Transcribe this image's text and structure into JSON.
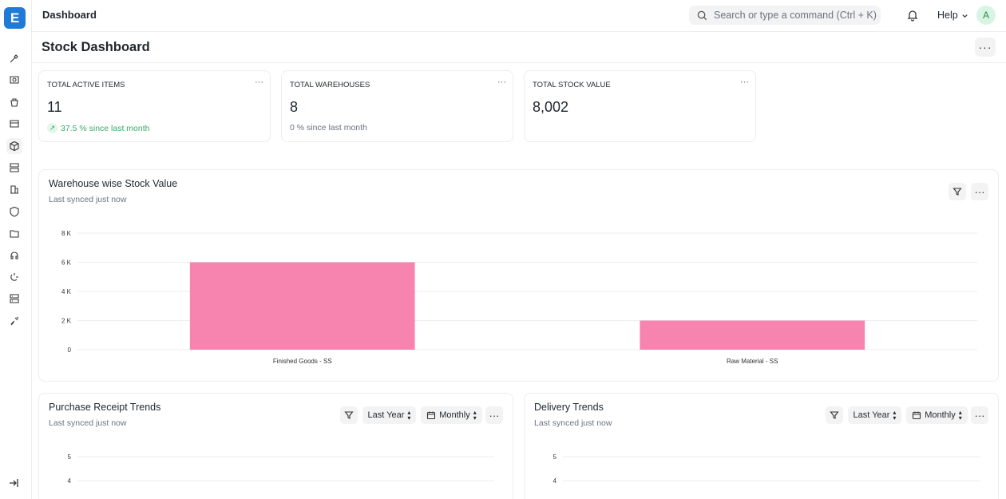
{
  "app": {
    "logo_letter": "E"
  },
  "topbar": {
    "breadcrumb": "Dashboard",
    "search_placeholder": "Search or type a command (Ctrl + K)",
    "help_label": "Help",
    "avatar_letter": "A"
  },
  "page": {
    "title": "Stock Dashboard",
    "menu_label": "···"
  },
  "sidebar": {
    "icons": [
      "tools-icon",
      "accounting-icon",
      "buying-icon",
      "selling-icon",
      "stock-icon",
      "manufacturing-icon",
      "building-icon",
      "quality-icon",
      "projects-icon",
      "support-icon",
      "integrations-icon",
      "assets-icon",
      "settings-icon"
    ],
    "active_index": 4
  },
  "cards": [
    {
      "label": "TOTAL ACTIVE ITEMS",
      "value": "11",
      "trend": "37.5 % since last month",
      "trend_up": true
    },
    {
      "label": "TOTAL WAREHOUSES",
      "value": "8",
      "trend": "0 % since last month",
      "trend_up": false
    },
    {
      "label": "TOTAL STOCK VALUE",
      "value": "8,002",
      "trend": "",
      "trend_up": false
    }
  ],
  "warehouse_panel": {
    "title": "Warehouse wise Stock Value",
    "subtitle": "Last synced just now"
  },
  "purchase_panel": {
    "title": "Purchase Receipt Trends",
    "subtitle": "Last synced just now",
    "period": "Last Year",
    "interval": "Monthly"
  },
  "delivery_panel": {
    "title": "Delivery Trends",
    "subtitle": "Last synced just now",
    "period": "Last Year",
    "interval": "Monthly"
  },
  "colors": {
    "bar": "#f684ae",
    "accent": "#1e7bd8",
    "positive": "#3ba86a"
  },
  "chart_data": [
    {
      "type": "bar",
      "title": "Warehouse wise Stock Value",
      "categories": [
        "Finished Goods - SS",
        "Raw Material - SS"
      ],
      "values": [
        6000,
        2000
      ],
      "ylim": [
        0,
        8000
      ],
      "yticks": [
        0,
        2000,
        4000,
        6000,
        8000
      ],
      "ytick_labels": [
        "0",
        "2 K",
        "4 K",
        "6 K",
        "8 K"
      ],
      "grid": true
    },
    {
      "type": "line",
      "title": "Purchase Receipt Trends",
      "visible_yticks": [
        "5",
        "4"
      ]
    },
    {
      "type": "line",
      "title": "Delivery Trends",
      "visible_yticks": [
        "5",
        "4"
      ]
    }
  ]
}
